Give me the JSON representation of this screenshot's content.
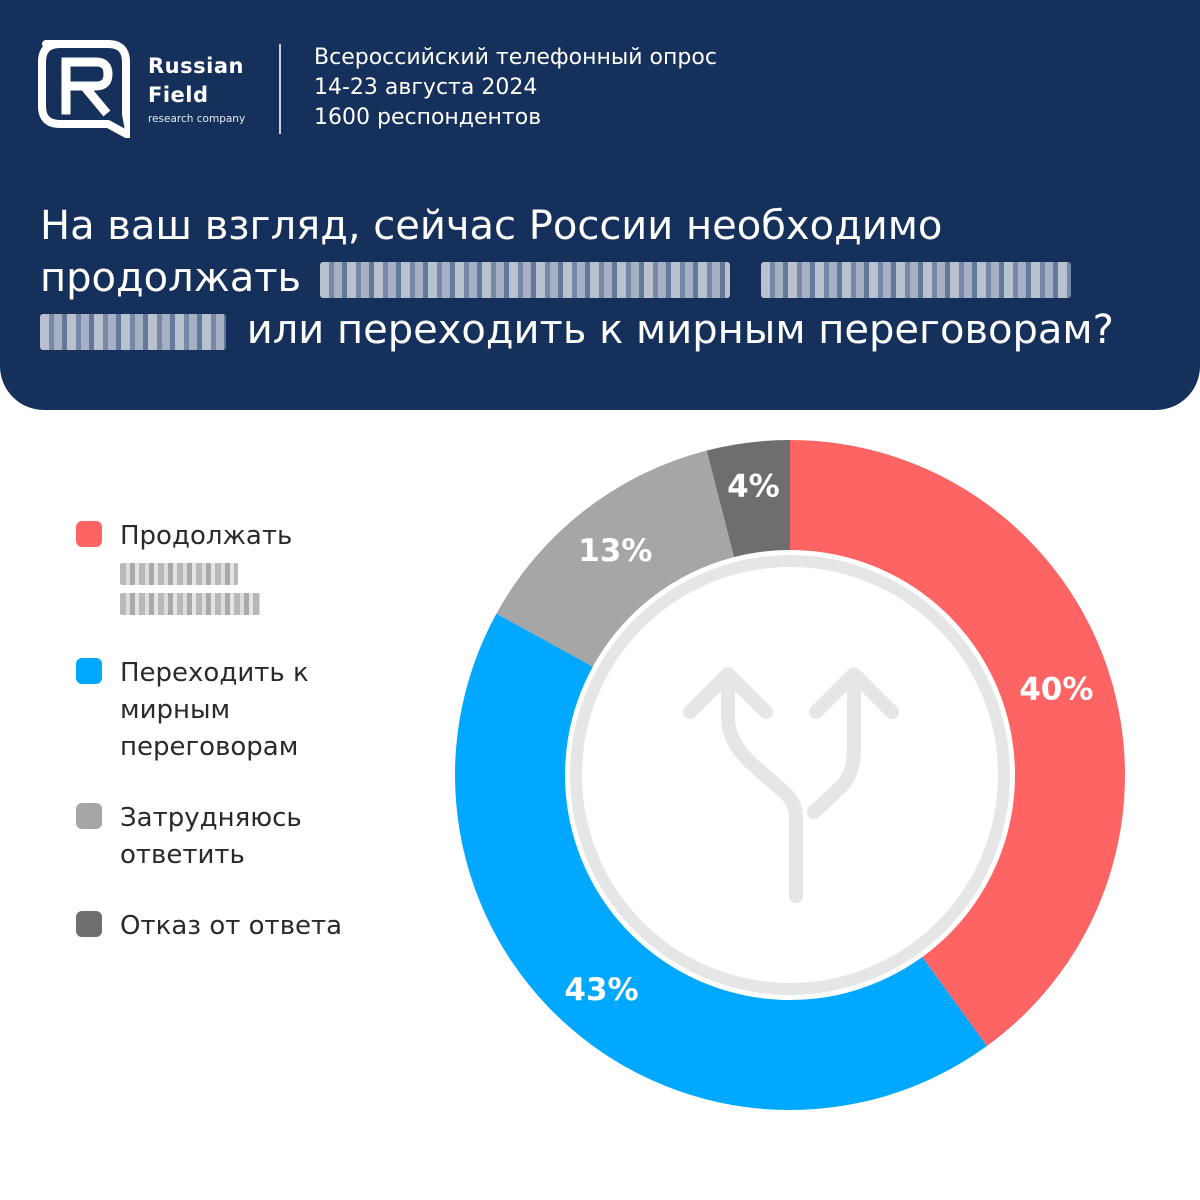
{
  "brand": {
    "name_line1": "Russian",
    "name_line2": "Field",
    "tagline": "research company",
    "logo_color": "#ffffff"
  },
  "survey": {
    "line1": "Всероссийский телефонный опрос",
    "line2": "14-23 августа 2024",
    "line3": "1600 респондентов"
  },
  "question": {
    "part1": "На ваш взгляд, сейчас России необходимо",
    "part2": "продолжать",
    "part3": "или переходить к мирным переговорам?"
  },
  "colors": {
    "header_bg": "#15305a",
    "continue": "#ff6464",
    "peace": "#00a8ff",
    "undecided": "#a6a6a6",
    "refuse": "#6e6e6e",
    "inner_ring": "#e6e6e6"
  },
  "legend": [
    {
      "lines": [
        "Продолжать"
      ],
      "blurred_lines": 2,
      "color": "#ff6464"
    },
    {
      "lines": [
        "Переходить к",
        "мирным",
        "переговорам"
      ],
      "blurred_lines": 0,
      "color": "#00a8ff"
    },
    {
      "lines": [
        "Затрудняюсь",
        "ответить"
      ],
      "blurred_lines": 0,
      "color": "#a6a6a6"
    },
    {
      "lines": [
        "Отказ от ответа"
      ],
      "blurred_lines": 0,
      "color": "#6e6e6e"
    }
  ],
  "center_icon": "split-arrows-icon",
  "chart_data": {
    "type": "pie",
    "variant": "donut",
    "categories": [
      "Продолжать",
      "Переходить к мирным переговорам",
      "Затрудняюсь ответить",
      "Отказ от ответа"
    ],
    "values": [
      40,
      43,
      13,
      4
    ],
    "labels": [
      "40%",
      "43%",
      "13%",
      "4%"
    ],
    "unit": "%",
    "start_angle_deg": 0,
    "direction": "clockwise",
    "legend_position": "left"
  }
}
